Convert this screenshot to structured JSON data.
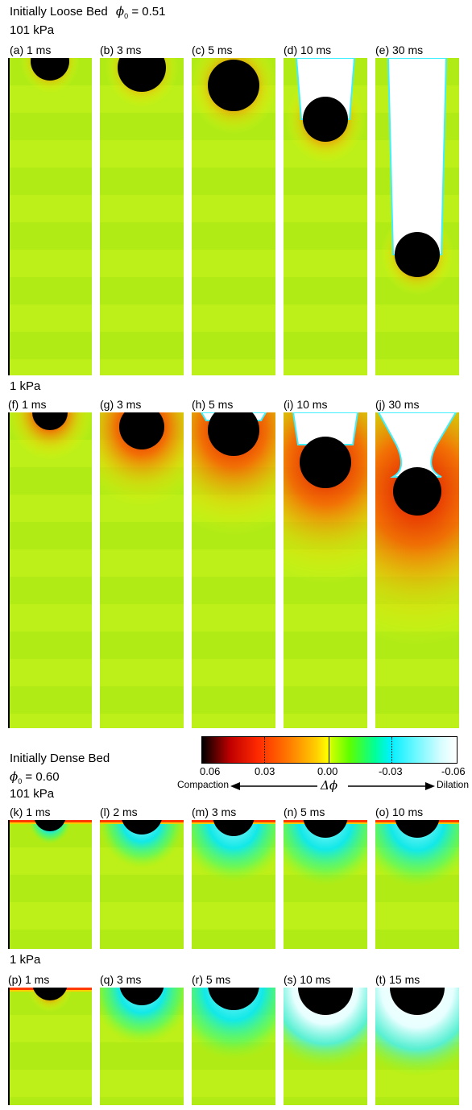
{
  "loose": {
    "title_prefix": "Initially Loose Bed",
    "phi_symbol": "ϕ",
    "phi_sub": "0",
    "phi_value": "= 0.51",
    "p101": "101 kPa",
    "p1": "1 kPa",
    "row1": [
      "(a) 1 ms",
      "(b)  3 ms",
      "(c)  5 ms",
      "(d)  10 ms",
      "(e)  30 ms"
    ],
    "row2": [
      "(f)  1 ms",
      "(g)  3 ms",
      "(h)  5 ms",
      "(i)  10 ms",
      "(j)  30 ms"
    ]
  },
  "dense": {
    "title": "Initially Dense Bed",
    "phi_symbol": "ϕ",
    "phi_sub": "0",
    "phi_value": "= 0.60",
    "p101": "101 kPa",
    "p1": "1 kPa",
    "row3": [
      "(k) 1 ms",
      "(l)  2 ms",
      "(m)  3 ms",
      "(n) 5 ms",
      "(o)  10 ms"
    ],
    "row4": [
      "(p)  1 ms",
      "(q)  3 ms",
      "(r)  5 ms",
      "(s)  10 ms",
      "(t)  15 ms"
    ]
  },
  "colorbar": {
    "ticks": [
      "0.06",
      "0.03",
      "0.00",
      "-0.03",
      "-0.06"
    ],
    "left_label": "Compaction",
    "right_label": "Dilation",
    "center_label": "Δϕ",
    "colors": [
      "#000000",
      "#c00000",
      "#ff7a00",
      "#ffff00",
      "#5cff00",
      "#00f0ff",
      "#ffffff"
    ]
  }
}
